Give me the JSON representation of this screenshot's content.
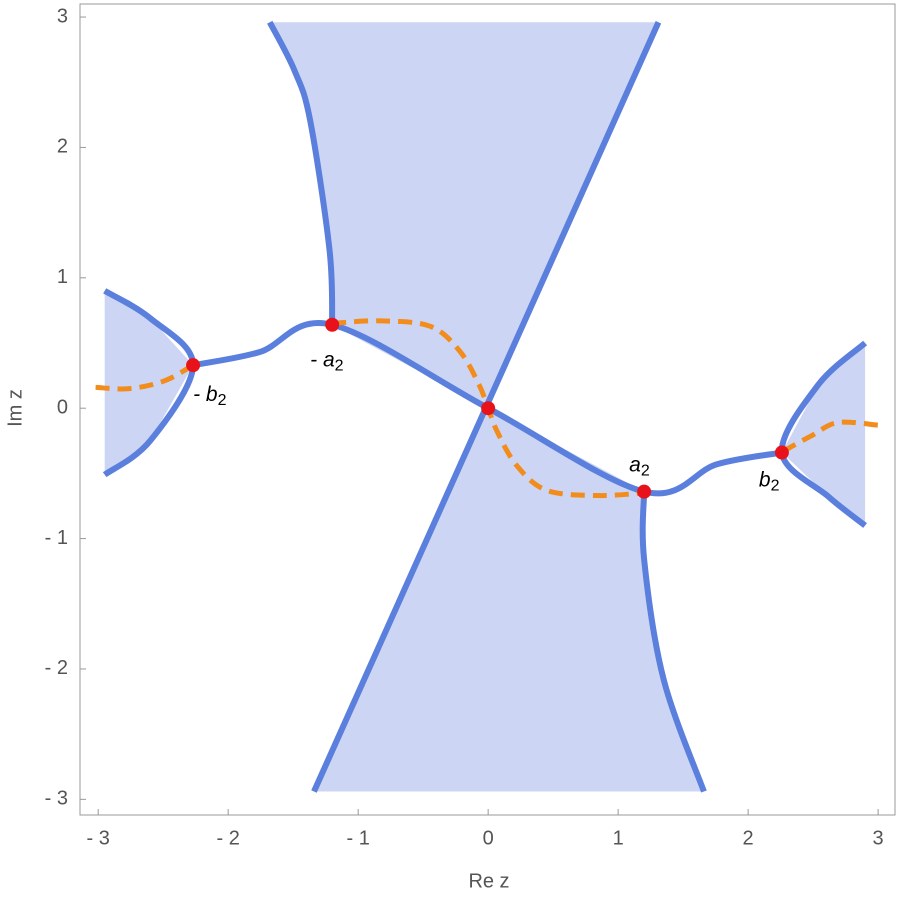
{
  "chart_data": {
    "type": "line",
    "x_label": "Re z",
    "y_label": "Im z",
    "xlim": [
      -3.14,
      3.13
    ],
    "ylim": [
      -3.12,
      3.1
    ],
    "xticks": [
      {
        "value": -3,
        "label": "- 3"
      },
      {
        "value": -2,
        "label": "- 2"
      },
      {
        "value": -1,
        "label": "- 1"
      },
      0,
      1,
      2,
      3
    ],
    "yticks": [
      {
        "value": -3,
        "label": "- 3"
      },
      {
        "value": -2,
        "label": "- 2"
      },
      {
        "value": -1,
        "label": "- 1"
      },
      0,
      1,
      2,
      3
    ],
    "regions": [
      {
        "color": "#ccd6f4",
        "x": [
          -1.2,
          -1.22,
          -1.37,
          -1.49,
          -1.68,
          1.31,
          0
        ],
        "y": [
          0.64,
          1.21,
          2.21,
          2.59,
          2.96,
          2.96,
          0
        ]
      },
      {
        "color": "#ccd6f4",
        "x": [
          0,
          1.2,
          1.2,
          1.35,
          1.66,
          -1.34
        ],
        "y": [
          0,
          -0.64,
          -1.16,
          -2.08,
          -2.94,
          -2.94
        ]
      },
      {
        "color": "#ccd6f4",
        "x": [
          -2.27,
          -2.6,
          -2.95,
          -2.95,
          -2.6
        ],
        "y": [
          0.33,
          0.69,
          0.9,
          -0.51,
          -0.25
        ]
      },
      {
        "color": "#ccd6f4",
        "x": [
          2.26,
          2.54,
          2.9,
          2.9,
          2.62
        ],
        "y": [
          -0.34,
          0.18,
          0.5,
          -0.9,
          -0.68
        ]
      }
    ],
    "series": [
      {
        "color": "#5b7fdc",
        "dashed": false,
        "x": [
          -1.2,
          -1.22,
          -1.37,
          -1.49,
          -1.68
        ],
        "y": [
          0.64,
          1.21,
          2.21,
          2.59,
          2.96
        ]
      },
      {
        "color": "#5b7fdc",
        "dashed": false,
        "x": [
          -1.34,
          1.31
        ],
        "y": [
          -2.94,
          2.96
        ]
      },
      {
        "color": "#5b7fdc",
        "dashed": false,
        "x": [
          1.2,
          1.2,
          1.35,
          1.66
        ],
        "y": [
          -0.64,
          -1.16,
          -2.08,
          -2.94
        ]
      },
      {
        "color": "#5b7fdc",
        "dashed": false,
        "x": [
          -2.27,
          -1.76,
          -1.2,
          0,
          1.2,
          1.76,
          2.26
        ],
        "y": [
          0.33,
          0.43,
          0.64,
          0,
          -0.64,
          -0.43,
          -0.34
        ]
      },
      {
        "color": "#5b7fdc",
        "dashed": false,
        "x": [
          -2.95,
          -2.6,
          -2.27,
          -2.6,
          -2.95
        ],
        "y": [
          0.9,
          0.69,
          0.33,
          -0.25,
          -0.51
        ]
      },
      {
        "color": "#5b7fdc",
        "dashed": false,
        "x": [
          2.9,
          2.54,
          2.26,
          2.62,
          2.9
        ],
        "y": [
          0.5,
          0.18,
          -0.34,
          -0.68,
          -0.9
        ]
      },
      {
        "color": "#f28c1c",
        "dashed": true,
        "x": [
          -3.02,
          -2.76,
          -2.49,
          -2.27,
          null,
          -1.2,
          -0.84,
          -0.45,
          -0.22,
          -0.07,
          0,
          0.07,
          0.22,
          0.45,
          0.84,
          1.2,
          null,
          2.27,
          2.49,
          2.69,
          3.0
        ],
        "y": [
          0.16,
          0.15,
          0.21,
          0.33,
          null,
          0.65,
          0.67,
          0.63,
          0.44,
          0.18,
          0,
          -0.18,
          -0.44,
          -0.63,
          -0.67,
          -0.65,
          null,
          -0.33,
          -0.21,
          -0.11,
          -0.13
        ]
      }
    ],
    "points": {
      "color": "#e8131a",
      "x": [
        -2.27,
        -1.2,
        0,
        1.2,
        2.26
      ],
      "y": [
        0.33,
        0.64,
        0,
        -0.64,
        -0.34
      ],
      "labels": [
        {
          "text": "- b",
          "sub": "2"
        },
        {
          "text": "- a",
          "sub": "2"
        },
        null,
        {
          "text": "a",
          "sub": "2"
        },
        {
          "text": "b",
          "sub": "2"
        }
      ]
    }
  }
}
